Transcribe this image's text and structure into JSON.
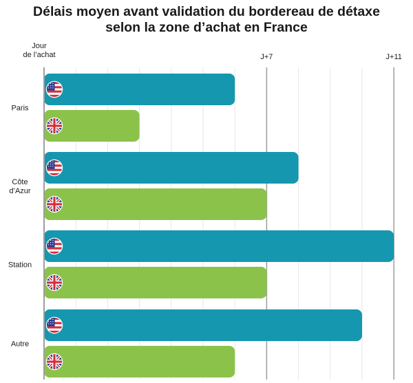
{
  "title": {
    "line1": "Délais moyen avant validation du bordereau de détaxe",
    "line2": "selon la zone d’achat en France"
  },
  "colors": {
    "usa": "#1597b0",
    "uk": "#8bc34a",
    "grid": "#e6e6e6",
    "major_grid": "#9e9e9e"
  },
  "chart_data": {
    "type": "bar",
    "orientation": "horizontal",
    "title": "Délais moyen avant validation du bordereau de détaxe selon la zone d’achat en France",
    "categories": [
      "Paris",
      "Côte d’Azur",
      "Station",
      "Autre"
    ],
    "category_label_lines": [
      [
        "Paris"
      ],
      [
        "Côte",
        "d’Azur"
      ],
      [
        "Station"
      ],
      [
        "Autre"
      ]
    ],
    "series": [
      {
        "icon": "usa-flag-icon",
        "color": "#1597b0",
        "values": [
          6,
          8,
          11,
          10
        ]
      },
      {
        "icon": "uk-flag-icon",
        "color": "#8bc34a",
        "values": [
          3,
          7,
          7,
          6
        ]
      }
    ],
    "x_ticks": [
      {
        "value": 0,
        "label_lines": [
          "Jour",
          "de l’achat"
        ]
      },
      {
        "value": 7,
        "label_lines": [
          "J+7"
        ]
      },
      {
        "value": 11,
        "label_lines": [
          "J+11"
        ]
      }
    ],
    "xlim": [
      0,
      11
    ],
    "minor_grid_step": 1,
    "grid": true
  }
}
